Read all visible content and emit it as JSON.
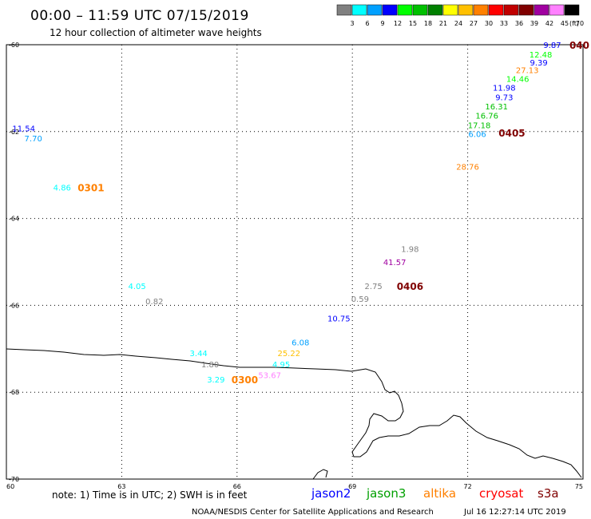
{
  "title": "00:00 – 11:59 UTC 07/15/2019",
  "subtitle": "12 hour collection of altimeter wave heights",
  "legend": {
    "unit": "(ft)",
    "bins": [
      {
        "label": "3",
        "color": "#808080"
      },
      {
        "label": "6",
        "color": "#00ffff"
      },
      {
        "label": "9",
        "color": "#00a0ff"
      },
      {
        "label": "12",
        "color": "#0000ff"
      },
      {
        "label": "15",
        "color": "#00ff00"
      },
      {
        "label": "18",
        "color": "#00c000"
      },
      {
        "label": "21",
        "color": "#008000"
      },
      {
        "label": "24",
        "color": "#ffff00"
      },
      {
        "label": "27",
        "color": "#ffc000"
      },
      {
        "label": "30",
        "color": "#ff8000"
      },
      {
        "label": "33",
        "color": "#ff0000"
      },
      {
        "label": "36",
        "color": "#c00000"
      },
      {
        "label": "39",
        "color": "#800000"
      },
      {
        "label": "42",
        "color": "#a000a0"
      },
      {
        "label": "45",
        "color": "#ff80ff"
      },
      {
        "label": "70",
        "color": "#000000"
      }
    ]
  },
  "map": {
    "lon_range": [
      60,
      75
    ],
    "lat_range": [
      -60,
      -70
    ],
    "lon_ticks": [
      "60",
      "63",
      "66",
      "69",
      "72",
      "75"
    ],
    "lat_ticks": [
      "-60",
      "-62",
      "-64",
      "-66",
      "-68",
      "-70"
    ]
  },
  "observations": [
    {
      "text": "9.87",
      "lon": 74.2,
      "lat": -60.0,
      "color": "#0000ff"
    },
    {
      "text": "12.48",
      "lon": 73.9,
      "lat": -60.22,
      "color": "#00ff00"
    },
    {
      "text": "9.39",
      "lon": 73.85,
      "lat": -60.4,
      "color": "#0000ff"
    },
    {
      "text": "27.13",
      "lon": 73.55,
      "lat": -60.58,
      "color": "#ff8000"
    },
    {
      "text": "14.46",
      "lon": 73.3,
      "lat": -60.78,
      "color": "#00ff00"
    },
    {
      "text": "11.98",
      "lon": 72.95,
      "lat": -60.98,
      "color": "#0000ff"
    },
    {
      "text": "9.73",
      "lon": 72.95,
      "lat": -61.2,
      "color": "#0000ff"
    },
    {
      "text": "16.31",
      "lon": 72.75,
      "lat": -61.42,
      "color": "#00c000"
    },
    {
      "text": "16.76",
      "lon": 72.5,
      "lat": -61.63,
      "color": "#00c000"
    },
    {
      "text": "17.18",
      "lon": 72.3,
      "lat": -61.85,
      "color": "#00c000"
    },
    {
      "text": "6.06",
      "lon": 72.25,
      "lat": -62.05,
      "color": "#00a0ff"
    },
    {
      "text": "28.76",
      "lon": 72.0,
      "lat": -62.8,
      "color": "#ff8000"
    },
    {
      "text": "11.54",
      "lon": 60.45,
      "lat": -61.92,
      "color": "#0000ff"
    },
    {
      "text": "7.70",
      "lon": 60.7,
      "lat": -62.15,
      "color": "#00a0ff"
    },
    {
      "text": "4.86",
      "lon": 61.45,
      "lat": -63.28,
      "color": "#00ffff"
    },
    {
      "text": "1.98",
      "lon": 70.5,
      "lat": -64.7,
      "color": "#808080"
    },
    {
      "text": "41.57",
      "lon": 70.1,
      "lat": -65.0,
      "color": "#a000a0"
    },
    {
      "text": "2.75",
      "lon": 69.55,
      "lat": -65.55,
      "color": "#808080"
    },
    {
      "text": "4.05",
      "lon": 63.4,
      "lat": -65.55,
      "color": "#00ffff"
    },
    {
      "text": "0.82",
      "lon": 63.85,
      "lat": -65.9,
      "color": "#808080"
    },
    {
      "text": "0.59",
      "lon": 69.2,
      "lat": -65.85,
      "color": "#808080"
    },
    {
      "text": "10.75",
      "lon": 68.65,
      "lat": -66.3,
      "color": "#0000ff"
    },
    {
      "text": "6.08",
      "lon": 67.65,
      "lat": -66.85,
      "color": "#00a0ff"
    },
    {
      "text": "25.22",
      "lon": 67.35,
      "lat": -67.1,
      "color": "#ffc000"
    },
    {
      "text": "3.44",
      "lon": 65.0,
      "lat": -67.1,
      "color": "#00ffff"
    },
    {
      "text": "4.95",
      "lon": 67.15,
      "lat": -67.35,
      "color": "#00ffff"
    },
    {
      "text": "1.80",
      "lon": 65.3,
      "lat": -67.35,
      "color": "#808080"
    },
    {
      "text": "53.67",
      "lon": 66.85,
      "lat": -67.6,
      "color": "#ff80ff"
    },
    {
      "text": "3.29",
      "lon": 65.45,
      "lat": -67.7,
      "color": "#00ffff"
    }
  ],
  "pass_labels": [
    {
      "text": "0301",
      "lon": 62.2,
      "lat": -63.28,
      "color": "#ff8000"
    },
    {
      "text": "0406",
      "lon": 70.5,
      "lat": -65.55,
      "color": "#800000"
    },
    {
      "text": "0405",
      "lon": 73.15,
      "lat": -62.02,
      "color": "#800000"
    },
    {
      "text": "040",
      "lon": 75.0,
      "lat": -60.0,
      "color": "#800000"
    },
    {
      "text": "0300",
      "lon": 66.2,
      "lat": -67.7,
      "color": "#ff8000"
    }
  ],
  "footer": {
    "note": "note:  1) Time is in UTC;  2) SWH is in feet",
    "satellites": [
      {
        "name": "jason2",
        "color": "#0000ff"
      },
      {
        "name": "jason3",
        "color": "#00a000"
      },
      {
        "name": "altika",
        "color": "#ff8000"
      },
      {
        "name": "cryosat",
        "color": "#ff0000"
      },
      {
        "name": "s3a",
        "color": "#800000"
      }
    ],
    "credit": "NOAA/NESDIS Center for Satellite Applications and Research",
    "timestamp": "Jul 16 12:27:14 UTC 2019"
  }
}
